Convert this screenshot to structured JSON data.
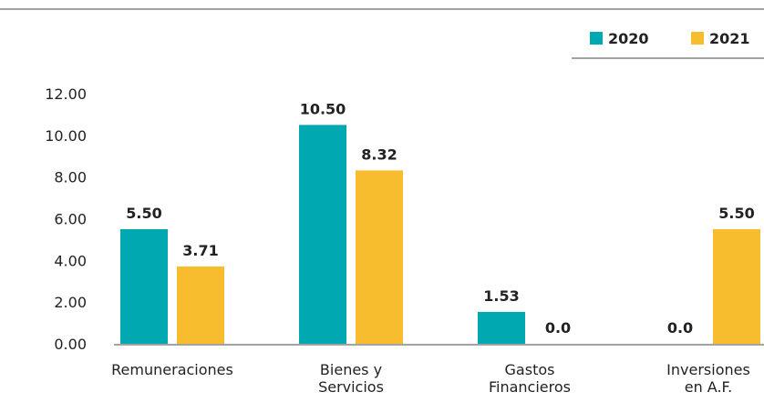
{
  "chart_data": {
    "type": "bar",
    "categories": [
      "Remuneraciones",
      "Bienes y\nServicios",
      "Gastos\nFinancieros",
      "Inversiones\nen A.F."
    ],
    "series": [
      {
        "name": "2020",
        "color": "#00a9b1",
        "values": [
          5.5,
          10.5,
          1.53,
          0
        ],
        "value_labels": [
          "5.50",
          "10.50",
          "1.53",
          "0.0"
        ]
      },
      {
        "name": "2021",
        "color": "#f7bd2e",
        "values": [
          3.71,
          8.32,
          0,
          5.5
        ],
        "value_labels": [
          "3.71",
          "8.32",
          "0.0",
          "5.50"
        ]
      }
    ],
    "ylim": [
      0,
      12
    ],
    "yticks": [
      {
        "value": 0,
        "label": "0.00"
      },
      {
        "value": 2,
        "label": "2.00"
      },
      {
        "value": 4,
        "label": "4.00"
      },
      {
        "value": 6,
        "label": "6.00"
      },
      {
        "value": 8,
        "label": "8.00"
      },
      {
        "value": 10,
        "label": "10.00"
      },
      {
        "value": 12,
        "label": "12.00"
      }
    ],
    "legend": "top-right"
  }
}
